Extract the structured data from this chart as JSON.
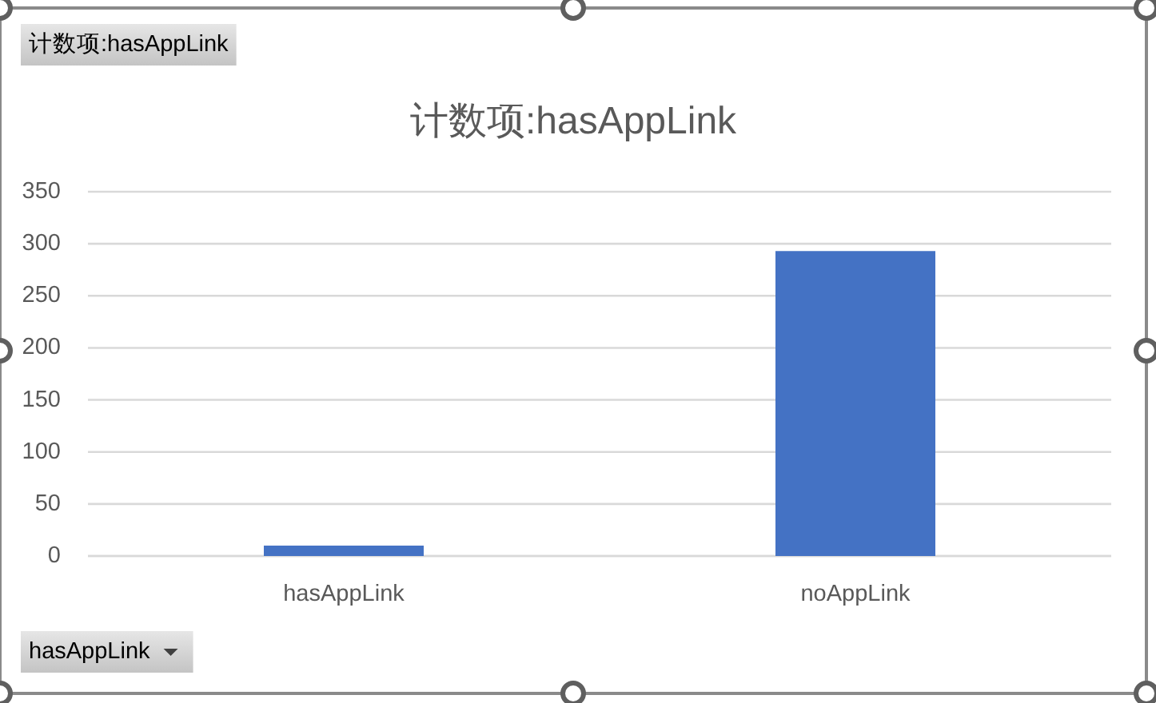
{
  "chart_data": {
    "type": "bar",
    "title": "计数项:hasAppLink",
    "categories": [
      "hasAppLink",
      "noAppLink"
    ],
    "values": [
      10,
      293
    ],
    "color": "#4472c4",
    "ylim": [
      0,
      350
    ],
    "yticks": [
      0,
      50,
      100,
      150,
      200,
      250,
      300,
      350
    ],
    "grid": "y",
    "annotations": [
      "计数项:hasAppLink",
      "hasAppLink"
    ]
  }
}
